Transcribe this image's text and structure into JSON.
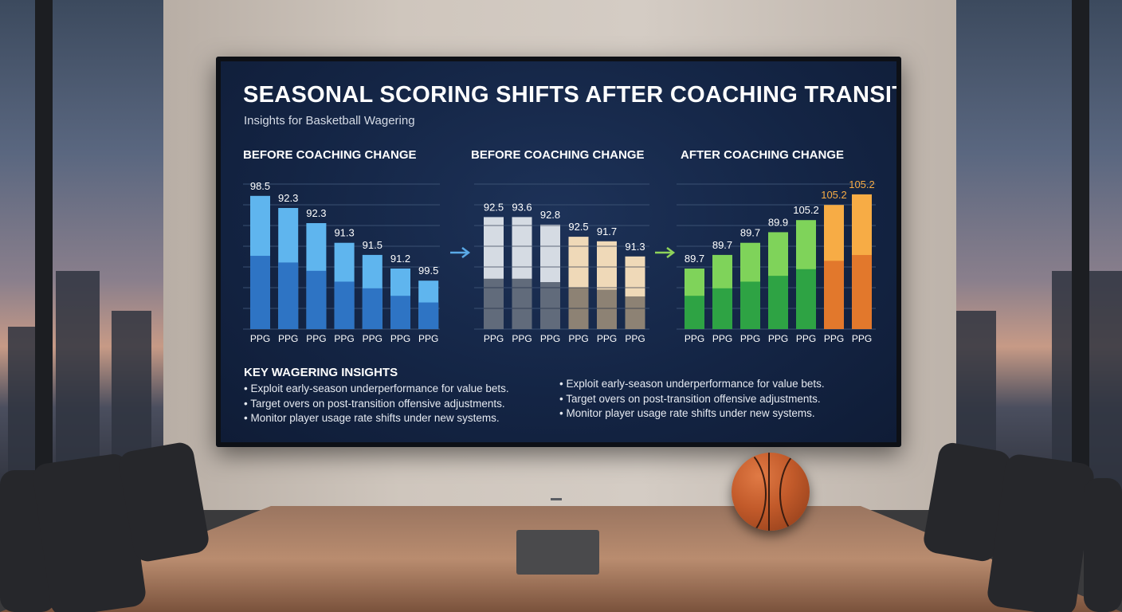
{
  "screen": {
    "title": "SEASONAL SCORING SHIFTS AFTER COACHING TRANSITIONS",
    "subtitle": "Insights for Basketball Wagering",
    "insights_title": "KEY WAGERING INSIGHTS",
    "insights_left": [
      "Exploit early-season underperformance for value bets.",
      "Target overs on post-transition offensive adjustments.",
      "Monitor player usage rate shifts under new systems."
    ],
    "insights_right": [
      "Exploit early-season underperformance for value bets.",
      "Target overs on post-transition offensive adjustments.",
      "Monitor player usage rate shifts under new systems."
    ]
  },
  "colors": {
    "screen_bg": "#142545",
    "blue_light": "#5fb5ee",
    "blue_dark": "#2e74c4",
    "grey_light": "#d5dbe3",
    "grey_dark": "#616b7b",
    "tan_light": "#efd9b8",
    "tan_dark": "#8d8274",
    "green_light": "#7fd35a",
    "green_dark": "#2ea344",
    "orange_light": "#f7ac45",
    "orange_dark": "#e2782c",
    "arrow_blue": "#5aa9e6",
    "arrow_green": "#8fd35a"
  },
  "chart_data": [
    {
      "type": "bar",
      "title": "BEFORE COACHING CHANGE",
      "categories": [
        "PPG",
        "PPG",
        "PPG",
        "PPG",
        "PPG",
        "PPG",
        "PPG"
      ],
      "values": [
        98.5,
        92.3,
        92.3,
        91.3,
        91.5,
        91.2,
        99.5
      ],
      "bar_fill_fraction": [
        0.88,
        0.8,
        0.7,
        0.57,
        0.49,
        0.4,
        0.32
      ],
      "palette": "blue"
    },
    {
      "type": "bar",
      "title": "BEFORE COACHING CHANGE",
      "categories": [
        "PPG",
        "PPG",
        "PPG",
        "PPG",
        "PPG",
        "PPG"
      ],
      "values": [
        92.5,
        93.6,
        92.8,
        92.5,
        91.7,
        91.3
      ],
      "bar_fill_fraction": [
        0.74,
        0.74,
        0.69,
        0.61,
        0.58,
        0.48
      ],
      "palette": "grey-tan"
    },
    {
      "type": "bar",
      "title": "AFTER COACHING CHANGE",
      "categories": [
        "PPG",
        "PPG",
        "PPG",
        "PPG",
        "PPG",
        "PPG",
        "PPG"
      ],
      "values": [
        89.7,
        89.7,
        89.7,
        89.9,
        105.2,
        105.2,
        105.2
      ],
      "bar_fill_fraction": [
        0.4,
        0.49,
        0.57,
        0.64,
        0.72,
        0.82,
        0.89
      ],
      "palette": "green-orange"
    }
  ]
}
